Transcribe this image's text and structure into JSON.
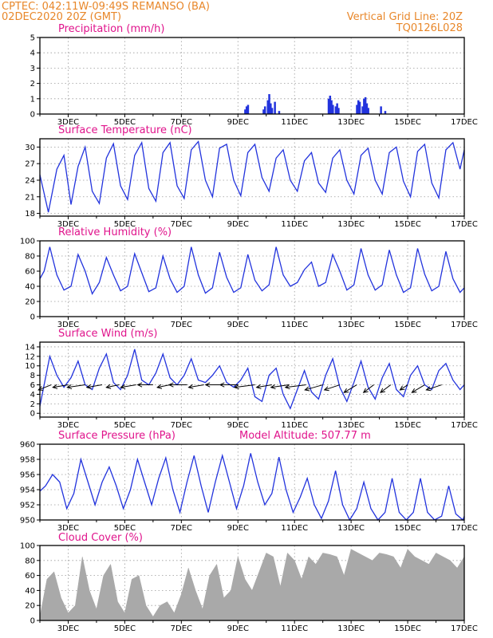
{
  "header": {
    "line1": "CPTEC:   042:11W-09:49S   REMANSO (BA)",
    "line2": "02DEC2020 20Z (GMT)",
    "grid_note": "Vertical Grid Line: 20Z",
    "run_code": "TQ0126L028"
  },
  "colors": {
    "header": "#e8872a",
    "panel_title": "#e0148c",
    "line": "#2233dd",
    "cloud_fill": "#a9a9a9",
    "wind_arrow": "#000000"
  },
  "chart_data": [
    {
      "type": "bar",
      "title": "Precipitation (mm/h)",
      "x_tick_labels": [
        "3DEC",
        "5DEC",
        "7DEC",
        "9DEC",
        "11DEC",
        "13DEC",
        "15DEC",
        "17DEC"
      ],
      "x_tick_days": [
        3,
        5,
        7,
        9,
        11,
        13,
        15,
        17
      ],
      "xlim_days": [
        2.0,
        17.0
      ],
      "ylim": [
        0,
        5
      ],
      "y_ticks": [
        0,
        1,
        2,
        3,
        4,
        5
      ],
      "grid": true,
      "series": [
        {
          "x_day": [
            9.25,
            9.3,
            9.35,
            9.9,
            9.95,
            10.05,
            10.1,
            10.15,
            10.2,
            10.3,
            10.45,
            12.2,
            12.25,
            12.3,
            12.35,
            12.45,
            12.5,
            12.55,
            13.2,
            13.25,
            13.3,
            13.4,
            13.45,
            13.5,
            13.55,
            13.6,
            14.05,
            14.2
          ],
          "values": [
            0.3,
            0.5,
            0.6,
            0.3,
            0.5,
            0.9,
            1.3,
            0.7,
            0.4,
            0.8,
            0.2,
            1.0,
            1.2,
            0.9,
            0.6,
            0.5,
            0.7,
            0.4,
            0.6,
            0.9,
            0.8,
            0.5,
            1.0,
            1.1,
            0.7,
            0.4,
            0.5,
            0.2
          ]
        }
      ]
    },
    {
      "type": "line",
      "title": "Surface Temperature (nC)",
      "x_tick_labels": [
        "3DEC",
        "5DEC",
        "7DEC",
        "9DEC",
        "11DEC",
        "13DEC",
        "15DEC",
        "17DEC"
      ],
      "x_tick_days": [
        3,
        5,
        7,
        9,
        11,
        13,
        15,
        17
      ],
      "xlim_days": [
        2.0,
        17.0
      ],
      "ylim": [
        17.5,
        31.5
      ],
      "y_ticks": [
        18,
        21,
        24,
        27,
        30
      ],
      "grid": true,
      "series": [
        {
          "x_day": [
            2.0,
            2.3,
            2.6,
            2.85,
            3.1,
            3.35,
            3.6,
            3.85,
            4.1,
            4.35,
            4.6,
            4.85,
            5.1,
            5.35,
            5.6,
            5.85,
            6.1,
            6.35,
            6.6,
            6.85,
            7.1,
            7.35,
            7.6,
            7.85,
            8.1,
            8.35,
            8.6,
            8.85,
            9.1,
            9.35,
            9.6,
            9.85,
            10.1,
            10.35,
            10.6,
            10.85,
            11.1,
            11.35,
            11.6,
            11.85,
            12.1,
            12.35,
            12.6,
            12.85,
            13.1,
            13.35,
            13.6,
            13.85,
            14.1,
            14.35,
            14.6,
            14.85,
            15.1,
            15.35,
            15.6,
            15.85,
            16.1,
            16.35,
            16.6,
            16.85,
            17.0
          ],
          "values": [
            25.0,
            18.2,
            26.0,
            28.5,
            19.6,
            26.5,
            30.0,
            22.0,
            19.8,
            28.0,
            30.6,
            23.0,
            20.5,
            28.5,
            30.8,
            22.5,
            20.2,
            29.0,
            30.8,
            23.0,
            20.7,
            29.5,
            31.0,
            24.0,
            21.0,
            29.8,
            30.5,
            24.0,
            21.2,
            29.0,
            30.5,
            24.5,
            22.0,
            28.0,
            29.5,
            24.0,
            22.0,
            27.5,
            29.0,
            23.5,
            21.8,
            28.0,
            29.5,
            24.0,
            21.5,
            28.5,
            29.8,
            24.0,
            21.5,
            29.0,
            30.0,
            23.8,
            21.0,
            29.2,
            30.5,
            23.5,
            20.8,
            29.5,
            30.8,
            26.0,
            29.5
          ]
        }
      ]
    },
    {
      "type": "line",
      "title": "Relative Humidity (%)",
      "x_tick_labels": [
        "3DEC",
        "5DEC",
        "7DEC",
        "9DEC",
        "11DEC",
        "13DEC",
        "15DEC",
        "17DEC"
      ],
      "x_tick_days": [
        3,
        5,
        7,
        9,
        11,
        13,
        15,
        17
      ],
      "xlim_days": [
        2.0,
        17.0
      ],
      "ylim": [
        0,
        100
      ],
      "y_ticks": [
        0,
        20,
        40,
        60,
        80,
        100
      ],
      "grid": true,
      "series": [
        {
          "x_day": [
            2.0,
            2.15,
            2.35,
            2.6,
            2.85,
            3.1,
            3.35,
            3.6,
            3.85,
            4.1,
            4.35,
            4.6,
            4.85,
            5.1,
            5.35,
            5.6,
            5.85,
            6.1,
            6.35,
            6.6,
            6.85,
            7.1,
            7.35,
            7.6,
            7.85,
            8.1,
            8.35,
            8.6,
            8.85,
            9.1,
            9.35,
            9.6,
            9.85,
            10.1,
            10.35,
            10.6,
            10.85,
            11.1,
            11.35,
            11.6,
            11.85,
            12.1,
            12.35,
            12.6,
            12.85,
            13.1,
            13.35,
            13.6,
            13.85,
            14.1,
            14.35,
            14.6,
            14.85,
            15.1,
            15.35,
            15.6,
            15.85,
            16.1,
            16.35,
            16.6,
            16.85,
            17.0
          ],
          "values": [
            50,
            60,
            92,
            55,
            35,
            40,
            82,
            60,
            30,
            45,
            78,
            55,
            34,
            40,
            83,
            58,
            33,
            38,
            80,
            50,
            32,
            40,
            92,
            55,
            31,
            38,
            85,
            52,
            32,
            38,
            82,
            48,
            34,
            42,
            92,
            55,
            40,
            45,
            62,
            72,
            40,
            45,
            82,
            60,
            35,
            42,
            90,
            55,
            35,
            42,
            88,
            55,
            32,
            38,
            90,
            56,
            34,
            40,
            86,
            50,
            32,
            38
          ]
        }
      ]
    },
    {
      "type": "line",
      "title": "Surface Wind (m/s)",
      "x_tick_labels": [
        "3DEC",
        "5DEC",
        "7DEC",
        "9DEC",
        "11DEC",
        "13DEC",
        "15DEC",
        "17DEC"
      ],
      "x_tick_days": [
        3,
        5,
        7,
        9,
        11,
        13,
        15,
        17
      ],
      "xlim_days": [
        2.0,
        17.0
      ],
      "ylim": [
        -0.8,
        15.0
      ],
      "y_ticks": [
        0,
        2,
        4,
        6,
        8,
        10,
        12,
        14
      ],
      "grid": true,
      "series": [
        {
          "x_day": [
            2.0,
            2.15,
            2.35,
            2.6,
            2.85,
            3.1,
            3.35,
            3.6,
            3.85,
            4.1,
            4.35,
            4.6,
            4.85,
            5.1,
            5.35,
            5.6,
            5.85,
            6.1,
            6.35,
            6.6,
            6.85,
            7.1,
            7.35,
            7.6,
            7.85,
            8.1,
            8.35,
            8.6,
            8.85,
            9.1,
            9.35,
            9.6,
            9.85,
            10.1,
            10.35,
            10.6,
            10.85,
            11.1,
            11.35,
            11.6,
            11.85,
            12.1,
            12.35,
            12.6,
            12.85,
            13.1,
            13.35,
            13.6,
            13.85,
            14.1,
            14.35,
            14.6,
            14.85,
            15.1,
            15.35,
            15.6,
            15.85,
            16.1,
            16.35,
            16.6,
            16.85,
            17.0
          ],
          "values": [
            1.5,
            6.0,
            12.0,
            8.0,
            5.5,
            7.5,
            11.0,
            6.0,
            5.0,
            9.5,
            12.5,
            6.5,
            5.0,
            8.0,
            13.5,
            7.0,
            6.0,
            8.5,
            12.5,
            7.5,
            6.0,
            8.0,
            11.5,
            7.0,
            6.5,
            8.0,
            10.0,
            6.5,
            5.5,
            7.0,
            9.5,
            3.5,
            2.5,
            8.0,
            9.5,
            4.0,
            1.0,
            5.0,
            9.0,
            4.5,
            3.0,
            8.0,
            11.5,
            5.5,
            2.5,
            6.5,
            11.0,
            5.5,
            3.0,
            7.5,
            10.5,
            5.0,
            3.5,
            8.0,
            10.0,
            6.0,
            5.0,
            9.0,
            10.5,
            7.0,
            5.0,
            6.0
          ]
        }
      ],
      "wind_vectors": {
        "x_day": [
          2.4,
          3.0,
          3.6,
          4.2,
          4.8,
          5.4,
          6.0,
          6.6,
          7.2,
          7.8,
          8.4,
          9.0,
          9.6,
          10.2,
          10.8,
          11.4,
          12.0,
          12.6,
          13.2,
          13.8,
          14.4,
          15.0,
          15.6,
          16.2
        ],
        "u": [
          -5,
          -6,
          -7,
          -6,
          -5,
          -6,
          -6,
          -5,
          -7,
          -6,
          -6,
          -7,
          -8,
          -6,
          -7,
          -8,
          -7,
          -6,
          -5,
          -4,
          -4,
          -3,
          -5,
          -6
        ],
        "v": [
          -2,
          -1,
          -1,
          -1,
          -1,
          -1,
          0,
          -1,
          0,
          -1,
          0,
          0,
          -1,
          -1,
          -1,
          -1,
          -2,
          -2,
          -3,
          -3,
          -3,
          -2,
          -3,
          -2
        ]
      }
    },
    {
      "type": "line",
      "title": "Surface Pressure (hPa)",
      "subtitle": "Model Altitude: 507.77 m",
      "x_tick_labels": [
        "3DEC",
        "5DEC",
        "7DEC",
        "9DEC",
        "11DEC",
        "13DEC",
        "15DEC",
        "17DEC"
      ],
      "x_tick_days": [
        3,
        5,
        7,
        9,
        11,
        13,
        15,
        17
      ],
      "xlim_days": [
        2.0,
        17.0
      ],
      "ylim": [
        950,
        960
      ],
      "y_ticks": [
        950,
        952,
        954,
        956,
        958,
        960
      ],
      "grid": true,
      "series": [
        {
          "x_day": [
            2.0,
            2.2,
            2.45,
            2.7,
            2.95,
            3.2,
            3.45,
            3.7,
            3.95,
            4.2,
            4.45,
            4.7,
            4.95,
            5.2,
            5.45,
            5.7,
            5.95,
            6.2,
            6.45,
            6.7,
            6.95,
            7.2,
            7.45,
            7.7,
            7.95,
            8.2,
            8.45,
            8.7,
            8.95,
            9.2,
            9.45,
            9.7,
            9.95,
            10.2,
            10.45,
            10.7,
            10.95,
            11.2,
            11.45,
            11.7,
            11.95,
            12.2,
            12.45,
            12.7,
            12.95,
            13.2,
            13.45,
            13.7,
            13.95,
            14.2,
            14.45,
            14.7,
            14.95,
            15.2,
            15.45,
            15.7,
            15.95,
            16.2,
            16.45,
            16.7,
            16.95,
            17.0
          ],
          "values": [
            953.8,
            954.5,
            956.0,
            955.0,
            951.5,
            953.5,
            958.0,
            955.0,
            952.0,
            955.0,
            957.0,
            954.5,
            951.5,
            954.0,
            958.0,
            955.0,
            952.0,
            955.5,
            958.2,
            954.0,
            951.0,
            955.0,
            958.5,
            954.5,
            951.0,
            955.0,
            958.5,
            955.0,
            951.5,
            954.5,
            958.8,
            955.0,
            952.0,
            953.5,
            958.3,
            954.0,
            951.0,
            953.0,
            955.5,
            952.0,
            950.2,
            952.5,
            956.5,
            952.0,
            949.8,
            951.5,
            955.0,
            951.5,
            949.5,
            951.0,
            955.5,
            951.0,
            949.5,
            951.0,
            955.5,
            951.0,
            949.8,
            950.5,
            954.5,
            950.8,
            949.5,
            950.5
          ]
        }
      ]
    },
    {
      "type": "area",
      "title": "Cloud Cover (%)",
      "x_tick_labels": [
        "3DEC",
        "5DEC",
        "7DEC",
        "9DEC",
        "11DEC",
        "13DEC",
        "15DEC",
        "17DEC"
      ],
      "x_tick_days": [
        3,
        5,
        7,
        9,
        11,
        13,
        15,
        17
      ],
      "xlim_days": [
        2.0,
        17.0
      ],
      "ylim": [
        0,
        100
      ],
      "y_ticks": [
        0,
        20,
        40,
        60,
        80,
        100
      ],
      "grid": true,
      "series": [
        {
          "x_day": [
            2.0,
            2.25,
            2.5,
            2.75,
            3.0,
            3.25,
            3.5,
            3.75,
            4.0,
            4.25,
            4.5,
            4.75,
            5.0,
            5.25,
            5.5,
            5.75,
            6.0,
            6.25,
            6.5,
            6.75,
            7.0,
            7.25,
            7.5,
            7.75,
            8.0,
            8.25,
            8.5,
            8.75,
            9.0,
            9.25,
            9.5,
            9.75,
            10.0,
            10.25,
            10.5,
            10.75,
            11.0,
            11.25,
            11.5,
            11.75,
            12.0,
            12.25,
            12.5,
            12.75,
            13.0,
            13.25,
            13.5,
            13.75,
            14.0,
            14.25,
            14.5,
            14.75,
            15.0,
            15.25,
            15.5,
            15.75,
            16.0,
            16.25,
            16.5,
            16.75,
            17.0
          ],
          "values": [
            5,
            55,
            65,
            30,
            10,
            20,
            85,
            40,
            15,
            60,
            75,
            25,
            10,
            55,
            60,
            20,
            5,
            20,
            25,
            10,
            35,
            70,
            40,
            15,
            60,
            75,
            30,
            40,
            85,
            55,
            40,
            65,
            90,
            85,
            45,
            90,
            80,
            55,
            85,
            75,
            90,
            88,
            85,
            60,
            95,
            90,
            85,
            80,
            90,
            88,
            85,
            70,
            95,
            85,
            80,
            75,
            90,
            85,
            80,
            70,
            85
          ]
        }
      ]
    }
  ]
}
